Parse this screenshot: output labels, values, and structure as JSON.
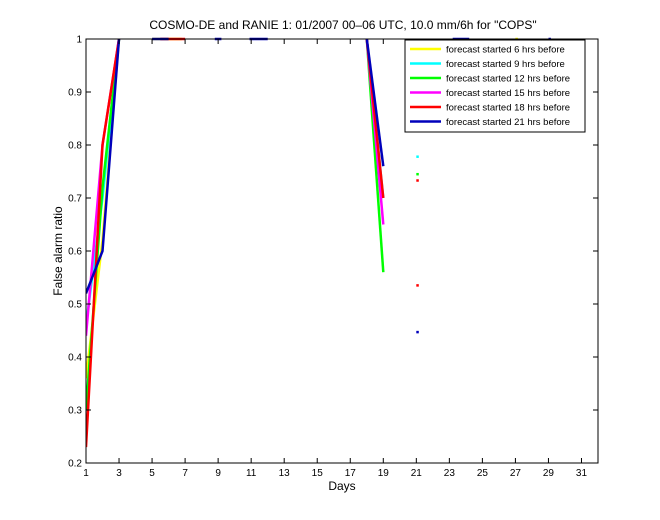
{
  "chart_data": {
    "type": "line",
    "title": "COSMO-DE and RANIE 1: 01/2007 00–06 UTC, 10.0 mm/6h for \"COPS\"",
    "xlabel": "Days",
    "ylabel": "False alarm ratio",
    "xlim": [
      1,
      32
    ],
    "ylim": [
      0.2,
      1
    ],
    "xticks": [
      "1",
      "3",
      "5",
      "7",
      "9",
      "11",
      "13",
      "15",
      "17",
      "19",
      "21",
      "23",
      "25",
      "27",
      "29",
      "31"
    ],
    "yticks": [
      "0.2",
      "0.3",
      "0.4",
      "0.5",
      "0.6",
      "0.7",
      "0.8",
      "0.9",
      "1"
    ],
    "grid": false,
    "legend_position": "top-right",
    "series": [
      {
        "name": "forecast started 6 hrs before",
        "color": "#ffff00",
        "segments": [
          [
            [
              1,
              0.36
            ],
            [
              2,
              0.62
            ],
            [
              3,
              1.0
            ]
          ],
          [
            [
              5,
              1.0
            ],
            [
              6.8,
              1.0
            ]
          ],
          [
            [
              18,
              1.0
            ],
            [
              18.8,
              0.76
            ]
          ],
          [
            [
              27,
              1.0
            ],
            [
              27.15,
              1.0
            ]
          ]
        ]
      },
      {
        "name": "forecast started 9 hrs before",
        "color": "#00ffff",
        "segments": [
          [
            [
              1,
              0.46
            ],
            [
              2,
              0.7
            ],
            [
              3,
              1.0
            ]
          ],
          [
            [
              18,
              1.0
            ],
            [
              19,
              0.7
            ]
          ],
          [
            [
              21,
              0.778
            ],
            [
              21.15,
              0.778
            ]
          ]
        ]
      },
      {
        "name": "forecast started 12 hrs before",
        "color": "#00ff00",
        "segments": [
          [
            [
              1,
              0.3
            ],
            [
              2,
              0.72
            ],
            [
              3,
              1.0
            ]
          ],
          [
            [
              18,
              1.0
            ],
            [
              19,
              0.56
            ]
          ],
          [
            [
              21,
              0.745
            ],
            [
              21.15,
              0.745
            ]
          ]
        ]
      },
      {
        "name": "forecast started 15 hrs before",
        "color": "#ff00ff",
        "segments": [
          [
            [
              1,
              0.44
            ],
            [
              2,
              0.8
            ],
            [
              3,
              1.0
            ]
          ],
          [
            [
              18,
              1.0
            ],
            [
              19,
              0.65
            ]
          ]
        ]
      },
      {
        "name": "forecast started 18 hrs before",
        "color": "#ff0000",
        "segments": [
          [
            [
              1,
              0.23
            ],
            [
              2,
              0.8
            ],
            [
              3,
              1.0
            ]
          ],
          [
            [
              5.5,
              1.0
            ],
            [
              7,
              1.0
            ]
          ],
          [
            [
              18,
              1.0
            ],
            [
              19,
              0.7
            ]
          ],
          [
            [
              21,
              0.535
            ],
            [
              21.15,
              0.535
            ]
          ],
          [
            [
              21,
              0.733
            ],
            [
              21.15,
              0.733
            ]
          ]
        ]
      },
      {
        "name": "forecast started 21 hrs before",
        "color": "#0000bb",
        "segments": [
          [
            [
              1,
              0.52
            ],
            [
              2,
              0.6
            ],
            [
              3,
              1.0
            ]
          ],
          [
            [
              5,
              1.0
            ],
            [
              6,
              1.0
            ]
          ],
          [
            [
              8.8,
              1.0
            ],
            [
              9.2,
              1.0
            ]
          ],
          [
            [
              10.9,
              1.0
            ],
            [
              12,
              1.0
            ]
          ],
          [
            [
              18,
              1.0
            ],
            [
              19,
              0.76
            ]
          ],
          [
            [
              21,
              0.447
            ],
            [
              21.15,
              0.447
            ]
          ],
          [
            [
              23.2,
              1.0
            ],
            [
              24.2,
              1.0
            ]
          ],
          [
            [
              29,
              1.0
            ],
            [
              29.15,
              1.0
            ]
          ]
        ]
      }
    ]
  }
}
